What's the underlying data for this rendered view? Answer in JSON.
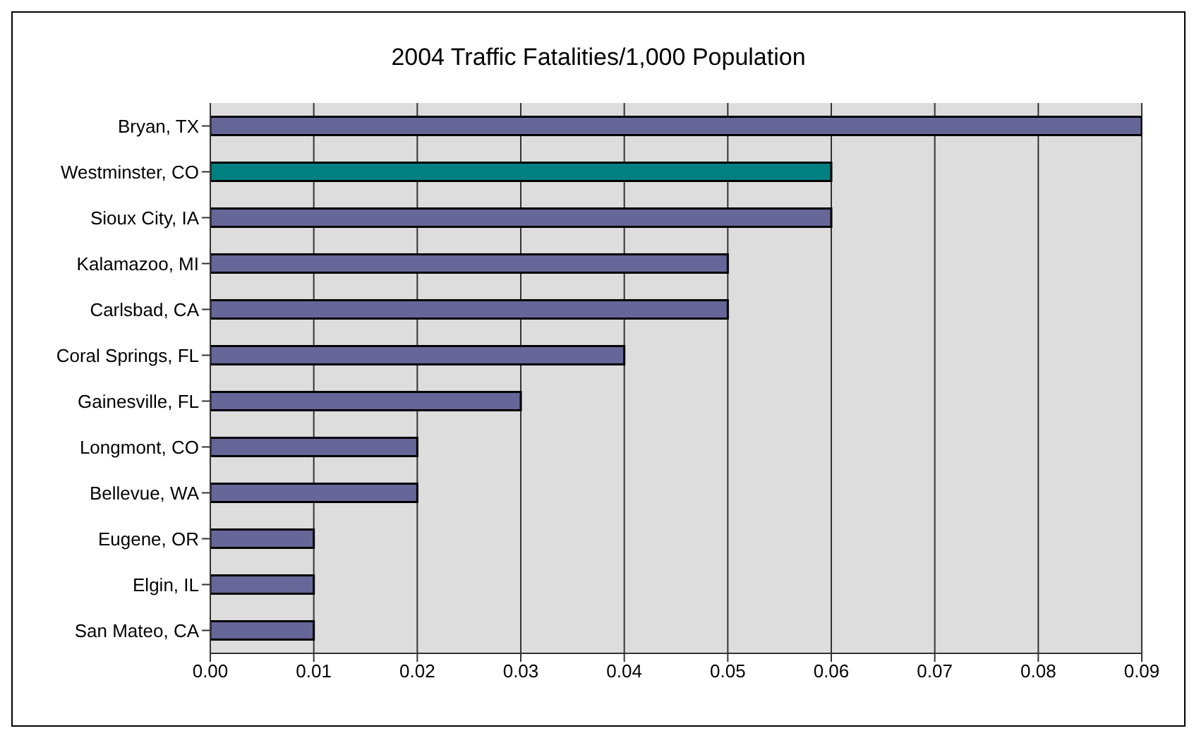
{
  "chart_data": {
    "type": "bar",
    "orientation": "horizontal",
    "title": "2004 Traffic Fatalities/1,000 Population",
    "categories": [
      "Bryan, TX",
      "Westminster, CO",
      "Sioux City, IA",
      "Kalamazoo, MI",
      "Carlsbad, CA",
      "Coral Springs, FL",
      "Gainesville, FL",
      "Longmont, CO",
      "Bellevue, WA",
      "Eugene, OR",
      "Elgin, IL",
      "San Mateo, CA"
    ],
    "values": [
      0.09,
      0.06,
      0.06,
      0.05,
      0.05,
      0.04,
      0.03,
      0.02,
      0.02,
      0.01,
      0.01,
      0.01
    ],
    "colors": [
      "#666699",
      "#008080",
      "#666699",
      "#666699",
      "#666699",
      "#666699",
      "#666699",
      "#666699",
      "#666699",
      "#666699",
      "#666699",
      "#666699"
    ],
    "xlim": [
      0,
      0.09
    ],
    "xticks": [
      {
        "value": 0,
        "label": "0.00"
      },
      0.01,
      0.02,
      0.03,
      0.04,
      0.05,
      0.06,
      0.07,
      0.08,
      0.09
    ],
    "grid": "x"
  }
}
